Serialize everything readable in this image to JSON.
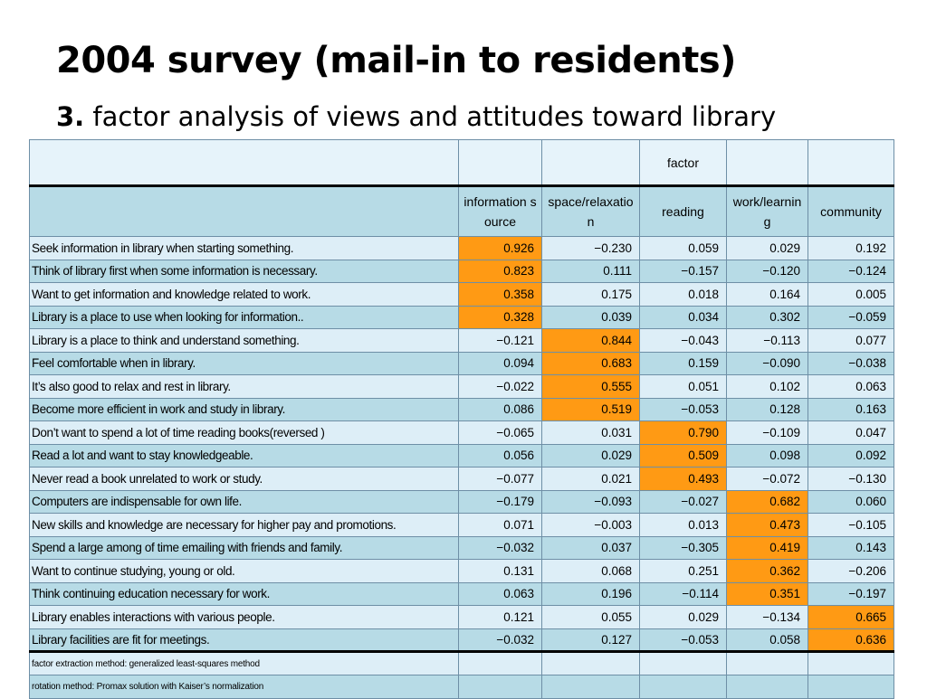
{
  "slide": {
    "title": "2004 survey (mail-in to residents)",
    "subtitle_number": "3.",
    "subtitle_text": "factor analysis of views and attitudes toward library"
  },
  "table": {
    "factor_header": "factor",
    "columns": [
      "information source",
      "space/relaxation",
      "reading",
      "work/learning",
      "community"
    ],
    "highlight_color": "#ff9a14",
    "rows": [
      {
        "label": "Seek information in library when starting something.",
        "values": [
          "0.926",
          "−0.230",
          "0.059",
          "0.029",
          "0.192"
        ],
        "highlight": 0
      },
      {
        "label": "Think of library first when some information is necessary.",
        "values": [
          "0.823",
          "0.111",
          "−0.157",
          "−0.120",
          "−0.124"
        ],
        "highlight": 0
      },
      {
        "label": "Want to get information and knowledge related to work.",
        "values": [
          "0.358",
          "0.175",
          "0.018",
          "0.164",
          "0.005"
        ],
        "highlight": 0
      },
      {
        "label": "Library is a place to use when looking for information..",
        "values": [
          "0.328",
          "0.039",
          "0.034",
          "0.302",
          "−0.059"
        ],
        "highlight": 0
      },
      {
        "label": "Library is a place to think and understand something.",
        "values": [
          "−0.121",
          "0.844",
          "−0.043",
          "−0.113",
          "0.077"
        ],
        "highlight": 1
      },
      {
        "label": "Feel comfortable when in library.",
        "values": [
          "0.094",
          "0.683",
          "0.159",
          "−0.090",
          "−0.038"
        ],
        "highlight": 1
      },
      {
        "label": "It’s also good to relax and rest in library.",
        "values": [
          "−0.022",
          "0.555",
          "0.051",
          "0.102",
          "0.063"
        ],
        "highlight": 1
      },
      {
        "label": "Become more efficient in work and study in library.",
        "values": [
          "0.086",
          "0.519",
          "−0.053",
          "0.128",
          "0.163"
        ],
        "highlight": 1
      },
      {
        "label": "Don’t want to spend a lot of time reading books(reversed )",
        "values": [
          "−0.065",
          "0.031",
          "0.790",
          "−0.109",
          "0.047"
        ],
        "highlight": 2
      },
      {
        "label": "Read a lot and want to stay knowledgeable.",
        "values": [
          "0.056",
          "0.029",
          "0.509",
          "0.098",
          "0.092"
        ],
        "highlight": 2
      },
      {
        "label": "Never read a book unrelated to work or study.",
        "values": [
          "−0.077",
          "0.021",
          "0.493",
          "−0.072",
          "−0.130"
        ],
        "highlight": 2
      },
      {
        "label": "Computers are indispensable for own life.",
        "values": [
          "−0.179",
          "−0.093",
          "−0.027",
          "0.682",
          "0.060"
        ],
        "highlight": 3
      },
      {
        "label": "New skills and knowledge are necessary for higher pay and promotions.",
        "values": [
          "0.071",
          "−0.003",
          "0.013",
          "0.473",
          "−0.105"
        ],
        "highlight": 3
      },
      {
        "label": "Spend a large among of time emailing with friends and family.",
        "values": [
          "−0.032",
          "0.037",
          "−0.305",
          "0.419",
          "0.143"
        ],
        "highlight": 3
      },
      {
        "label": "Want to continue studying, young or old.",
        "values": [
          "0.131",
          "0.068",
          "0.251",
          "0.362",
          "−0.206"
        ],
        "highlight": 3
      },
      {
        "label": "Think continuing education necessary for work.",
        "values": [
          "0.063",
          "0.196",
          "−0.114",
          "0.351",
          "−0.197"
        ],
        "highlight": 3
      },
      {
        "label": "Library enables interactions with various people.",
        "values": [
          "0.121",
          "0.055",
          "0.029",
          "−0.134",
          "0.665"
        ],
        "highlight": 4
      },
      {
        "label": "Library facilities are fit for meetings.",
        "values": [
          "−0.032",
          "0.127",
          "−0.053",
          "0.058",
          "0.636"
        ],
        "highlight": 4
      }
    ],
    "notes": [
      "factor extraction method: generalized least-squares method",
      "rotation method: Promax solution with Kaiser’s normalization"
    ]
  }
}
